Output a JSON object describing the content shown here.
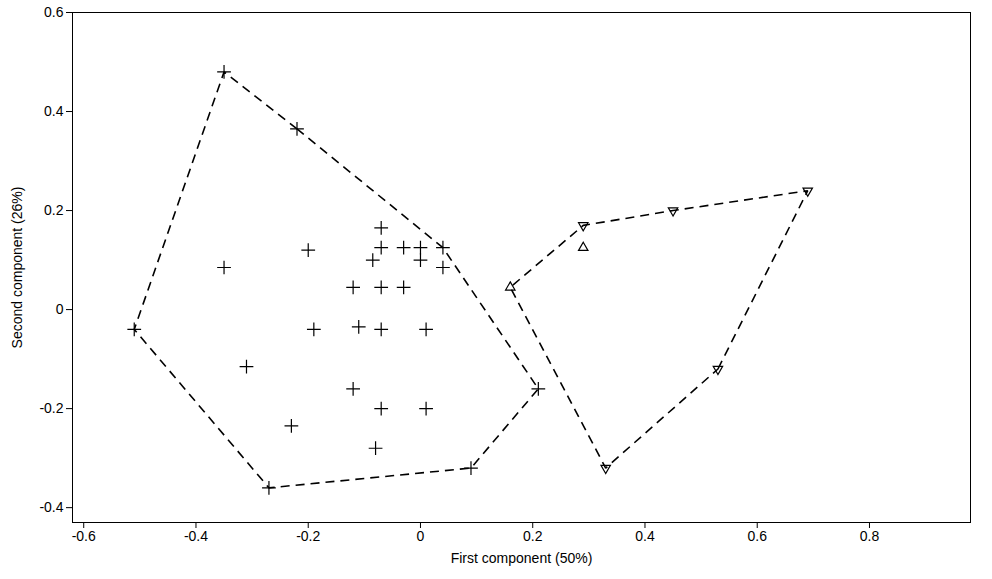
{
  "chart_data": {
    "type": "scatter",
    "x_label": "First component (50%)",
    "y_label": "Second component (26%)",
    "xlim": [
      -0.62,
      0.98
    ],
    "ylim": [
      -0.43,
      0.6
    ],
    "xticks": [
      -0.6,
      -0.4,
      -0.2,
      0,
      0.2,
      0.4,
      0.6,
      0.8
    ],
    "yticks": [
      -0.4,
      -0.2,
      0,
      0.2,
      0.4,
      0.6
    ],
    "grid": false,
    "series": [
      {
        "marker": "plus",
        "color": "#000000",
        "x": [
          -0.35,
          -0.22,
          -0.35,
          -0.51,
          -0.07,
          -0.07,
          -0.03,
          0.0,
          0.04,
          -0.2,
          0.0,
          -0.085,
          0.04,
          -0.12,
          -0.07,
          -0.03,
          -0.19,
          -0.11,
          -0.07,
          0.01,
          -0.31,
          -0.12,
          -0.07,
          0.01,
          0.21,
          -0.23,
          -0.08,
          -0.27,
          0.09
        ],
        "values": [
          0.48,
          0.365,
          0.085,
          -0.04,
          0.165,
          0.125,
          0.125,
          0.125,
          0.125,
          0.12,
          0.1,
          0.1,
          0.085,
          0.045,
          0.045,
          0.045,
          -0.04,
          -0.035,
          -0.04,
          -0.04,
          -0.115,
          -0.16,
          -0.2,
          -0.2,
          -0.16,
          -0.235,
          -0.28,
          -0.36,
          -0.32
        ]
      },
      {
        "marker": "triangle-up",
        "color": "#000000",
        "x": [
          0.16,
          0.29
        ],
        "values": [
          0.045,
          0.125
        ]
      },
      {
        "marker": "triangle-down",
        "color": "#000000",
        "x": [
          0.29,
          0.45,
          0.69,
          0.53,
          0.33
        ],
        "values": [
          0.17,
          0.2,
          0.24,
          -0.12,
          -0.32
        ]
      }
    ]
  }
}
